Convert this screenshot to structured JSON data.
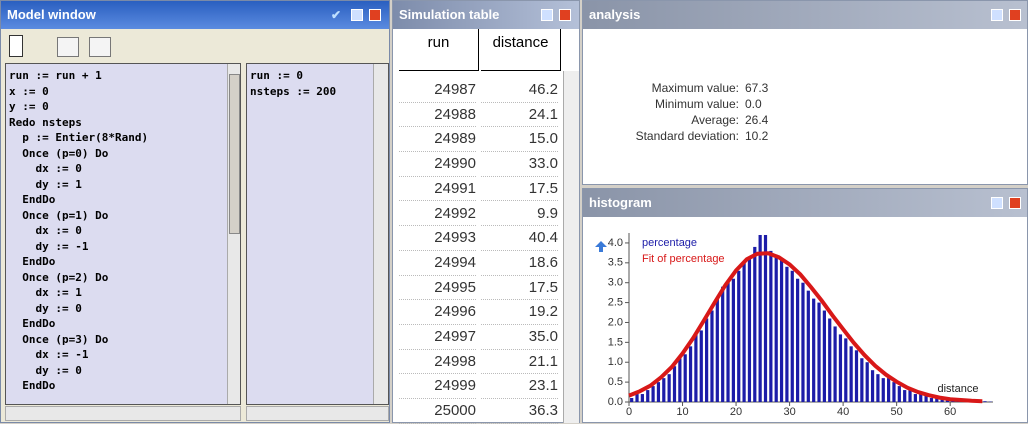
{
  "model_window": {
    "title": "Model window",
    "code": [
      "run := run + 1",
      "x := 0",
      "y := 0",
      "Redo nsteps",
      "  p := Entier(8*Rand)",
      "  Once (p=0) Do",
      "    dx := 0",
      "    dy := 1",
      "  EndDo",
      "  Once (p=1) Do",
      "    dx := 0",
      "    dy := -1",
      "  EndDo",
      "  Once (p=2) Do",
      "    dx := 1",
      "    dy := 0",
      "  EndDo",
      "  Once (p=3) Do",
      "    dx := -1",
      "    dy := 0",
      "  EndDo"
    ],
    "init": [
      "run := 0",
      "nsteps := 200"
    ]
  },
  "simulation_table": {
    "title": "Simulation table",
    "columns": [
      "run",
      "distance"
    ],
    "rows": [
      [
        "24987",
        "46.2"
      ],
      [
        "24988",
        "24.1"
      ],
      [
        "24989",
        "15.0"
      ],
      [
        "24990",
        "33.0"
      ],
      [
        "24991",
        "17.5"
      ],
      [
        "24992",
        "9.9"
      ],
      [
        "24993",
        "40.4"
      ],
      [
        "24994",
        "18.6"
      ],
      [
        "24995",
        "17.5"
      ],
      [
        "24996",
        "19.2"
      ],
      [
        "24997",
        "35.0"
      ],
      [
        "24998",
        "21.1"
      ],
      [
        "24999",
        "23.1"
      ],
      [
        "25000",
        "36.3"
      ]
    ]
  },
  "analysis": {
    "title": "analysis",
    "stats": [
      {
        "label": "Maximum value:",
        "value": "67.3"
      },
      {
        "label": "Minimum value:",
        "value": "0.0"
      },
      {
        "label": "Average:",
        "value": "26.4"
      },
      {
        "label": "Standard deviation:",
        "value": "10.2"
      }
    ]
  },
  "chart_data": {
    "type": "histogram",
    "title": "histogram",
    "x_label": "distance",
    "bins": [
      0,
      1,
      2,
      3,
      4,
      5,
      6,
      7,
      8,
      9,
      10,
      11,
      12,
      13,
      14,
      15,
      16,
      17,
      18,
      19,
      20,
      21,
      22,
      23,
      24,
      25,
      26,
      27,
      28,
      29,
      30,
      31,
      32,
      33,
      34,
      35,
      36,
      37,
      38,
      39,
      40,
      41,
      42,
      43,
      44,
      45,
      46,
      47,
      48,
      49,
      50,
      51,
      52,
      53,
      54,
      55,
      56,
      57,
      58,
      59,
      60,
      61,
      62,
      63,
      64,
      65,
      66,
      67,
      68
    ],
    "series": [
      {
        "name": "percentage",
        "color": "#1c1ca8",
        "values": [
          0.1,
          0.2,
          0.2,
          0.3,
          0.4,
          0.5,
          0.6,
          0.7,
          0.9,
          1.1,
          1.2,
          1.4,
          1.7,
          1.8,
          2.1,
          2.3,
          2.6,
          2.9,
          3.0,
          3.1,
          3.3,
          3.5,
          3.6,
          3.9,
          4.2,
          4.2,
          3.8,
          3.7,
          3.6,
          3.4,
          3.3,
          3.1,
          3.0,
          2.8,
          2.6,
          2.5,
          2.3,
          2.1,
          1.9,
          1.7,
          1.6,
          1.4,
          1.3,
          1.1,
          1.0,
          0.8,
          0.7,
          0.6,
          0.6,
          0.5,
          0.4,
          0.3,
          0.3,
          0.2,
          0.2,
          0.2,
          0.1,
          0.1,
          0.1,
          0.1,
          0.1,
          0.05,
          0.05,
          0.05,
          0.02,
          0.02,
          0.02,
          0.01
        ]
      },
      {
        "name": "Fit of percentage",
        "color": "#d81818",
        "x": [
          0,
          2,
          4,
          6,
          8,
          10,
          12,
          14,
          16,
          18,
          20,
          22,
          24,
          26,
          28,
          30,
          32,
          34,
          36,
          38,
          40,
          42,
          44,
          46,
          48,
          50,
          52,
          54,
          56,
          58,
          60,
          62,
          64,
          66
        ],
        "values": [
          0.16,
          0.27,
          0.41,
          0.62,
          0.88,
          1.22,
          1.61,
          2.05,
          2.5,
          2.94,
          3.31,
          3.59,
          3.73,
          3.74,
          3.64,
          3.46,
          3.21,
          2.89,
          2.55,
          2.18,
          1.83,
          1.49,
          1.18,
          0.91,
          0.69,
          0.51,
          0.36,
          0.25,
          0.17,
          0.11,
          0.07,
          0.05,
          0.03,
          0.02
        ]
      }
    ],
    "xlim": [
      0,
      68
    ],
    "ylim": [
      0,
      4.25
    ],
    "xticks": [
      0,
      10,
      20,
      30,
      40,
      50,
      60
    ],
    "yticks": [
      {
        "value": 0,
        "label": "0.0"
      },
      0.5,
      {
        "value": 1,
        "label": "1.0"
      },
      1.5,
      {
        "value": 2,
        "label": "2.0"
      },
      2.5,
      {
        "value": 3,
        "label": "3.0"
      },
      3.5,
      {
        "value": 4,
        "label": "4.0"
      }
    ]
  }
}
